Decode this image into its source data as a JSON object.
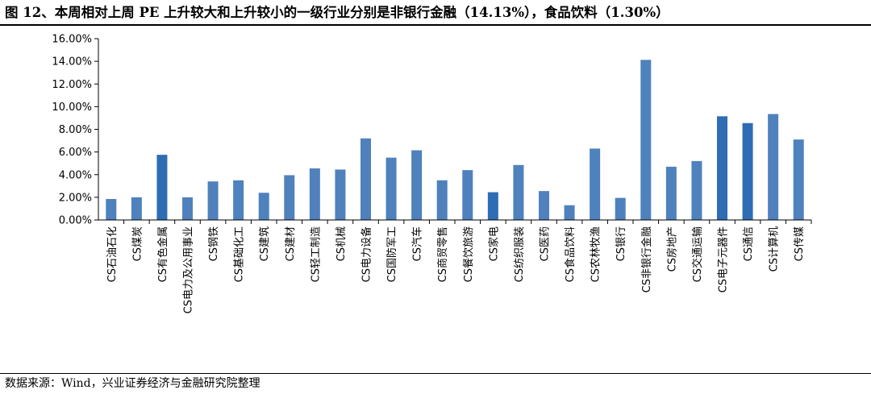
{
  "title": "图 12、本周相对上周 PE 上升较大和上升较小的一级行业分别是非银行金融（14.13%），食品饮料（1.30%）",
  "source": "数据来源：Wind，兴业证券经济与金融研究院整理",
  "colors": {
    "bar": "#4f81bd",
    "bar_highlight": "#2e6db4",
    "axis": "#000000"
  },
  "chart_data": {
    "type": "bar",
    "title": "",
    "xlabel": "",
    "ylabel": "",
    "ylim": [
      0,
      16
    ],
    "yticks": [
      "0.00%",
      "2.00%",
      "4.00%",
      "6.00%",
      "8.00%",
      "10.00%",
      "12.00%",
      "14.00%",
      "16.00%"
    ],
    "grid": false,
    "legend": false,
    "unit": "%",
    "categories": [
      "CS石油石化",
      "CS煤炭",
      "CS有色金属",
      "CS电力及公用事业",
      "CS钢铁",
      "CS基础化工",
      "CS建筑",
      "CS建材",
      "CS轻工制造",
      "CS机械",
      "CS电力设备",
      "CS国防军工",
      "CS汽车",
      "CS商贸零售",
      "CS餐饮旅游",
      "CS家电",
      "CS纺织服装",
      "CS医药",
      "CS食品饮料",
      "CS农林牧渔",
      "CS银行",
      "CS非银行金融",
      "CS房地产",
      "CS交通运输",
      "CS电子元器件",
      "CS通信",
      "CS计算机",
      "CS传媒"
    ],
    "values": [
      1.85,
      2.0,
      5.75,
      2.0,
      3.4,
      3.5,
      2.4,
      3.95,
      4.55,
      4.45,
      7.2,
      5.5,
      6.15,
      3.5,
      4.4,
      2.45,
      4.85,
      2.55,
      1.3,
      6.3,
      1.95,
      14.13,
      4.7,
      5.2,
      9.15,
      8.55,
      9.35,
      7.1
    ],
    "highlight": [
      "CS有色金属",
      "CS家电",
      "CS电子元器件",
      "CS通信"
    ]
  }
}
